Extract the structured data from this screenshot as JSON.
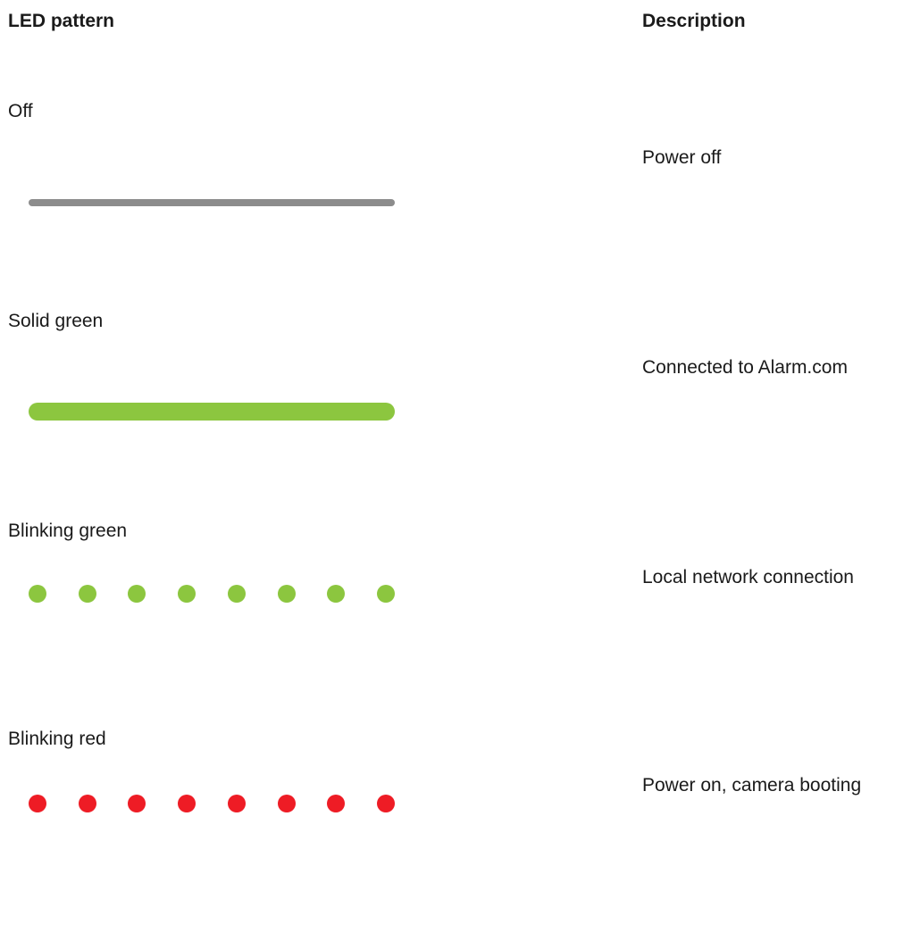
{
  "table": {
    "headers": {
      "pattern": "LED pattern",
      "description": "Description"
    },
    "rows": [
      {
        "pattern_label": "Off",
        "description": "Power off",
        "led_style": "solid",
        "led_color": "#8c8c8c"
      },
      {
        "pattern_label": "Solid green",
        "description": "Connected to Alarm.com",
        "led_style": "solid",
        "led_color": "#8cc63f"
      },
      {
        "pattern_label": "Blinking green",
        "description": "Local network connection",
        "led_style": "blinking",
        "led_color": "#8cc63f"
      },
      {
        "pattern_label": "Blinking red",
        "description": "Power on, camera booting",
        "led_style": "blinking",
        "led_color": "#ee1c25"
      }
    ]
  }
}
